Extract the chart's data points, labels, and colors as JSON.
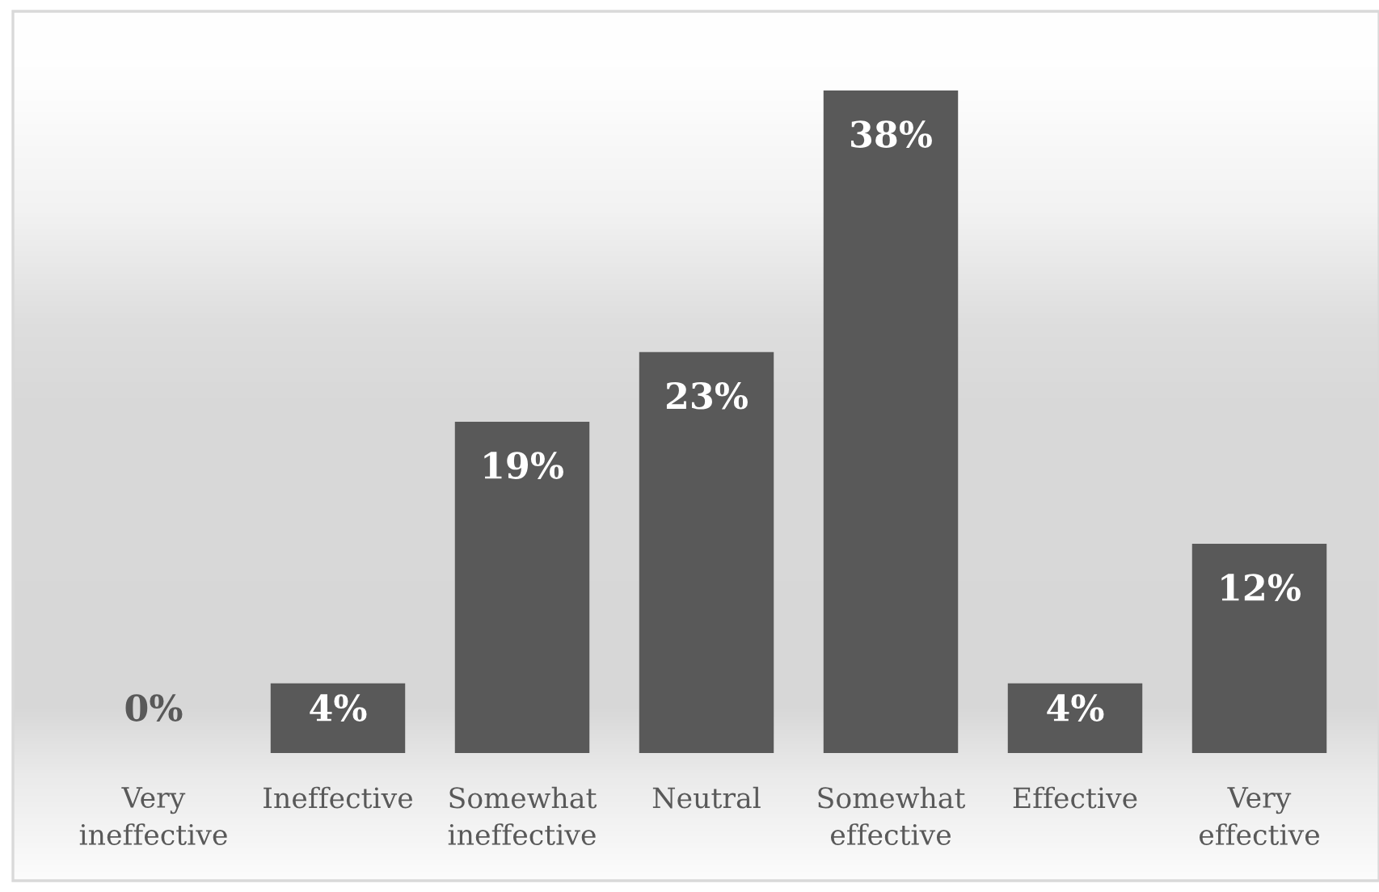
{
  "chart_data": {
    "type": "bar",
    "categories": [
      "Very\nineffective",
      "Ineffective",
      "Somewhat\nineffective",
      "Neutral",
      "Somewhat\neffective",
      "Effective",
      "Very\neffective"
    ],
    "values": [
      0,
      4,
      19,
      23,
      38,
      4,
      12
    ],
    "value_labels": [
      "0%",
      "4%",
      "19%",
      "23%",
      "38%",
      "4%",
      "12%"
    ],
    "color": "#595959"
  }
}
